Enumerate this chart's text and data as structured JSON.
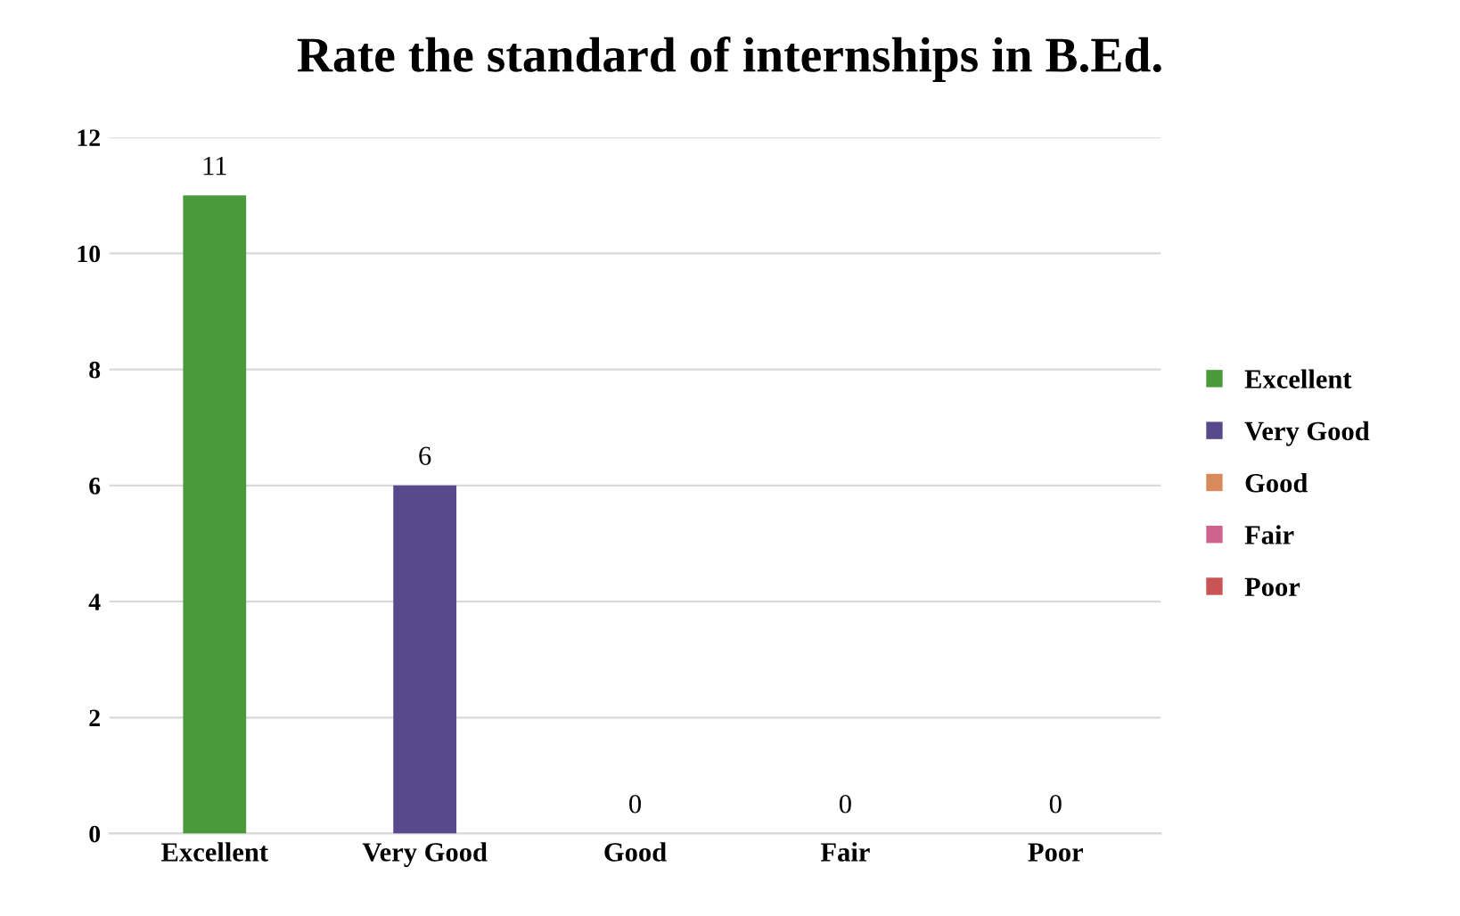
{
  "chart_data": {
    "type": "bar",
    "title": "Rate the standard of internships in B.Ed.",
    "categories": [
      "Excellent",
      "Very Good",
      "Good",
      "Fair",
      "Poor"
    ],
    "series": [
      {
        "name": "Excellent",
        "color": "#4a9a3c",
        "values": [
          11,
          null,
          null,
          null,
          null
        ]
      },
      {
        "name": "Very Good",
        "color": "#574a8c",
        "values": [
          null,
          6,
          null,
          null,
          null
        ]
      },
      {
        "name": "Good",
        "color": "#d98a5c",
        "values": [
          null,
          null,
          0,
          null,
          null
        ]
      },
      {
        "name": "Fair",
        "color": "#d0628e",
        "values": [
          null,
          null,
          null,
          0,
          null
        ]
      },
      {
        "name": "Poor",
        "color": "#c85454",
        "values": [
          null,
          null,
          null,
          null,
          0
        ]
      }
    ],
    "ylim": [
      0,
      12
    ],
    "yticks": [
      0,
      2,
      4,
      6,
      8,
      10,
      12
    ],
    "grid": "y",
    "legend": "right",
    "data_labels": true
  }
}
